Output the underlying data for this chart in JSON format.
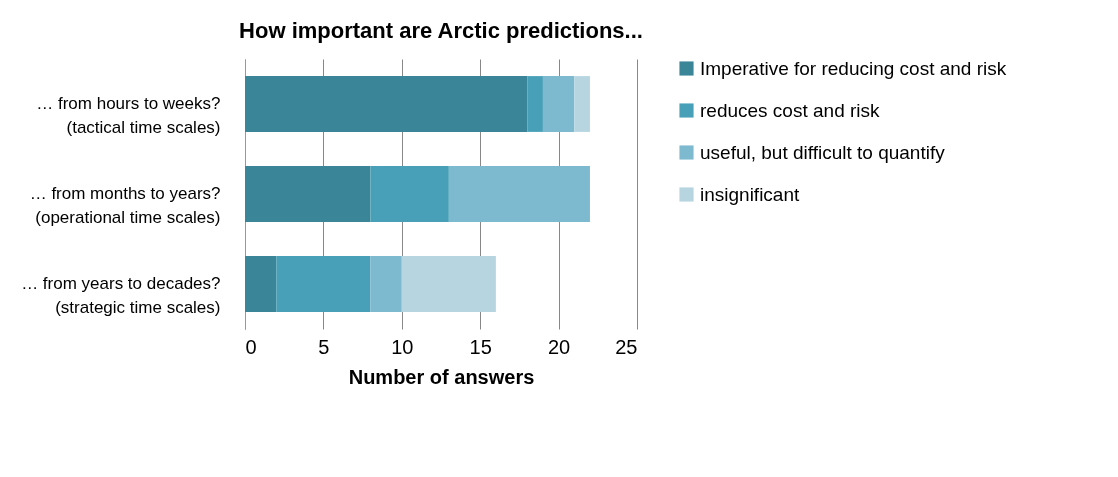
{
  "chart_data": {
    "type": "bar",
    "orientation": "horizontal",
    "stacked": true,
    "title": "How important are Arctic predictions...",
    "xlabel": "Number of answers",
    "categories": [
      "… from hours to weeks?\n(tactical time scales)",
      "… from months to years?\n(operational time scales)",
      "… from years to decades?\n(strategic time scales)"
    ],
    "series": [
      {
        "name": "Imperative for reducing cost and risk",
        "color": "#3a8597",
        "values": [
          18,
          8,
          2
        ]
      },
      {
        "name": "reduces cost and risk",
        "color": "#47a0b8",
        "values": [
          1,
          5,
          6
        ]
      },
      {
        "name": "useful, but difficult to quantify",
        "color": "#7dbacf",
        "values": [
          2,
          9,
          2
        ]
      },
      {
        "name": "insignificant",
        "color": "#b6d5e0",
        "values": [
          1,
          0,
          6
        ]
      }
    ],
    "xlim": [
      0,
      25
    ],
    "xticks": [
      0,
      5,
      10,
      15,
      20,
      25
    ],
    "grid": "x",
    "legend": "right"
  }
}
